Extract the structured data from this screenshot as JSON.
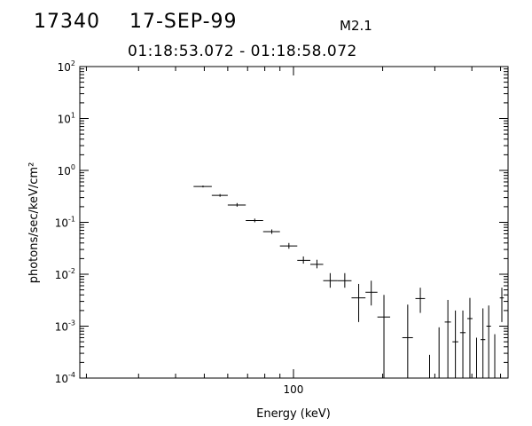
{
  "header": {
    "event_id": "17340",
    "date": "17-SEP-99",
    "flare_class": "M2.1",
    "time_range": "01:18:53.072 - 01:18:58.072"
  },
  "chart_data": {
    "type": "scatter",
    "title": "",
    "xlabel": "Energy (keV)",
    "ylabel": "photons/sec/keV/cm²",
    "xscale": "log",
    "yscale": "log",
    "xlim": [
      19,
      530
    ],
    "ylim": [
      0.0001,
      100
    ],
    "x_tick_labels": [
      "100"
    ],
    "y_tick_labels": [
      {
        "base": "10",
        "exp": "2",
        "value": 100
      },
      {
        "base": "10",
        "exp": "1",
        "value": 10
      },
      {
        "base": "10",
        "exp": "0",
        "value": 1
      },
      {
        "base": "10",
        "exp": "-1",
        "value": 0.1
      },
      {
        "base": "10",
        "exp": "-2",
        "value": 0.01
      },
      {
        "base": "10",
        "exp": "-3",
        "value": 0.001
      },
      {
        "base": "10",
        "exp": "-4",
        "value": 0.0001
      }
    ],
    "grid": false,
    "series": [
      {
        "marker": "error-cross",
        "points": [
          {
            "x": 49.5,
            "y": 0.49,
            "xlo": 46,
            "xhi": 53,
            "ylo": 0.47,
            "yhi": 0.51
          },
          {
            "x": 56.5,
            "y": 0.33,
            "xlo": 53,
            "xhi": 60,
            "ylo": 0.31,
            "yhi": 0.35
          },
          {
            "x": 64.5,
            "y": 0.215,
            "xlo": 60,
            "xhi": 69,
            "ylo": 0.2,
            "yhi": 0.235
          },
          {
            "x": 74,
            "y": 0.108,
            "xlo": 69,
            "xhi": 79,
            "ylo": 0.1,
            "yhi": 0.118
          },
          {
            "x": 84.5,
            "y": 0.066,
            "xlo": 79,
            "xhi": 90,
            "ylo": 0.06,
            "yhi": 0.073
          },
          {
            "x": 96.5,
            "y": 0.035,
            "xlo": 90,
            "xhi": 103,
            "ylo": 0.031,
            "yhi": 0.04
          },
          {
            "x": 108,
            "y": 0.0185,
            "xlo": 103,
            "xhi": 114,
            "ylo": 0.016,
            "yhi": 0.022
          },
          {
            "x": 120,
            "y": 0.0155,
            "xlo": 114,
            "xhi": 126,
            "ylo": 0.013,
            "yhi": 0.019
          },
          {
            "x": 133,
            "y": 0.0075,
            "xlo": 126,
            "xhi": 141,
            "ylo": 0.0055,
            "yhi": 0.0105
          },
          {
            "x": 149,
            "y": 0.0075,
            "xlo": 141,
            "xhi": 157,
            "ylo": 0.0055,
            "yhi": 0.0105
          },
          {
            "x": 166,
            "y": 0.0035,
            "xlo": 157,
            "xhi": 175,
            "ylo": 0.0012,
            "yhi": 0.0065
          },
          {
            "x": 183,
            "y": 0.0045,
            "xlo": 175,
            "xhi": 192,
            "ylo": 0.0025,
            "yhi": 0.0075
          },
          {
            "x": 202,
            "y": 0.0015,
            "xlo": 192,
            "xhi": 212,
            "ylo": 0.0001,
            "yhi": 0.004
          },
          {
            "x": 243,
            "y": 0.0006,
            "xlo": 233,
            "xhi": 253,
            "ylo": 0.0001,
            "yhi": 0.0026
          },
          {
            "x": 268,
            "y": 0.0034,
            "xlo": 258,
            "xhi": 278,
            "ylo": 0.0018,
            "yhi": 0.0055
          },
          {
            "x": 288,
            "y": 0.0001,
            "xlo": 288,
            "xhi": 288,
            "ylo": 0.0001,
            "yhi": 0.00028
          },
          {
            "x": 310,
            "y": 0.0001,
            "xlo": 310,
            "xhi": 310,
            "ylo": 0.0001,
            "yhi": 0.00095
          },
          {
            "x": 332,
            "y": 0.0012,
            "xlo": 324,
            "xhi": 340,
            "ylo": 0.0001,
            "yhi": 0.0032
          },
          {
            "x": 352,
            "y": 0.0005,
            "xlo": 344,
            "xhi": 360,
            "ylo": 0.0001,
            "yhi": 0.002
          },
          {
            "x": 373,
            "y": 0.00075,
            "xlo": 365,
            "xhi": 381,
            "ylo": 0.0001,
            "yhi": 0.002
          },
          {
            "x": 394,
            "y": 0.0014,
            "xlo": 386,
            "xhi": 402,
            "ylo": 0.0001,
            "yhi": 0.0035
          },
          {
            "x": 415,
            "y": 0.0001,
            "xlo": 415,
            "xhi": 415,
            "ylo": 0.0001,
            "yhi": 0.0006
          },
          {
            "x": 436,
            "y": 0.00055,
            "xlo": 428,
            "xhi": 444,
            "ylo": 0.0001,
            "yhi": 0.0022
          },
          {
            "x": 456,
            "y": 0.001,
            "xlo": 448,
            "xhi": 464,
            "ylo": 0.0001,
            "yhi": 0.0025
          },
          {
            "x": 478,
            "y": 0.0001,
            "xlo": 478,
            "xhi": 478,
            "ylo": 0.0001,
            "yhi": 0.0007
          },
          {
            "x": 505,
            "y": 0.0035,
            "xlo": 497,
            "xhi": 513,
            "ylo": 0.0012,
            "yhi": 0.0055
          }
        ]
      }
    ]
  }
}
